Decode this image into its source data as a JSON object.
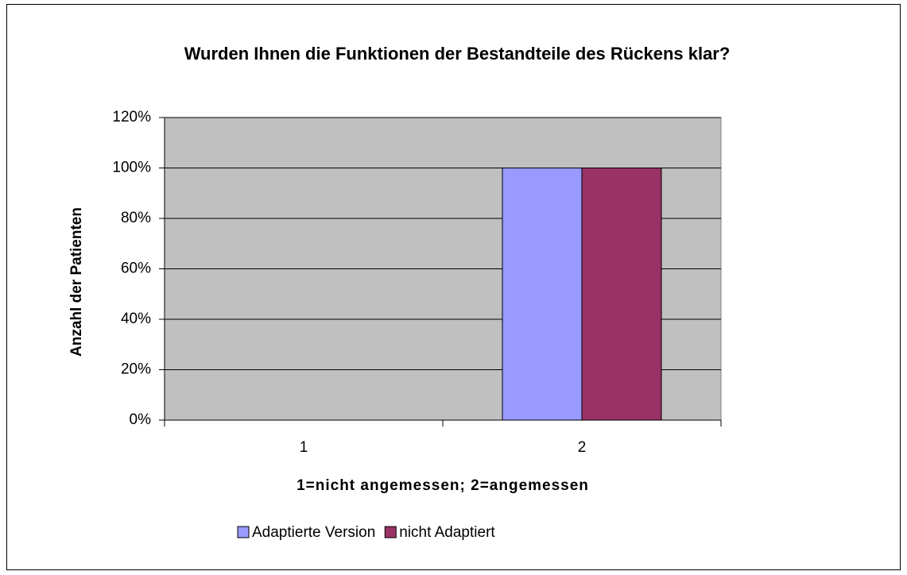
{
  "chart_data": {
    "type": "bar",
    "title": "Wurden Ihnen die Funktionen der Bestandteile des Rückens klar?",
    "x_label": "1=nicht angemessen; 2=angemessen",
    "y_label": "Anzahl der Patienten",
    "categories": [
      "1",
      "2"
    ],
    "series": [
      {
        "name": "Adaptierte Version",
        "color": "#9999ff",
        "values": [
          0,
          100
        ]
      },
      {
        "name": "nicht Adaptiert",
        "color": "#993366",
        "values": [
          0,
          100
        ]
      }
    ],
    "ylim": [
      0,
      120
    ],
    "yticks": [
      {
        "value": 0,
        "label": "0%"
      },
      {
        "value": 20,
        "label": "20%"
      },
      {
        "value": 40,
        "label": "40%"
      },
      {
        "value": 60,
        "label": "60%"
      },
      {
        "value": 80,
        "label": "80%"
      },
      {
        "value": 100,
        "label": "100%"
      },
      {
        "value": 120,
        "label": "120%"
      }
    ],
    "grid": true,
    "legend": "bottom",
    "plot_background": "#c0c0c0"
  }
}
